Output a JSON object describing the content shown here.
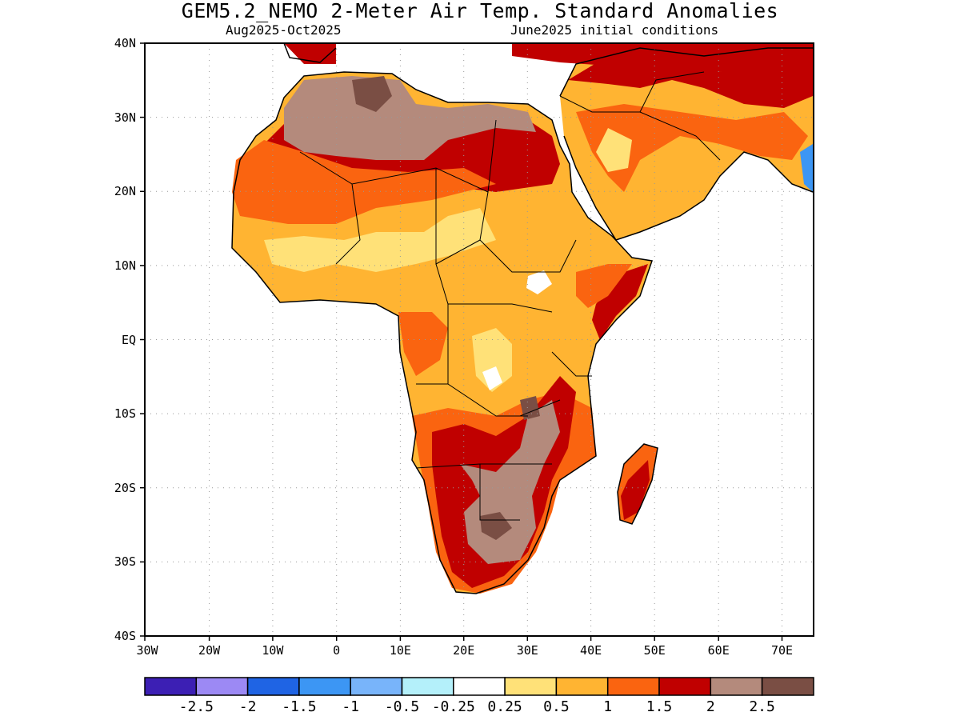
{
  "title": "GEM5.2_NEMO 2-Meter Air Temp. Standard Anomalies",
  "subtitle_left": "Aug2025-Oct2025",
  "subtitle_right": "June2025 initial conditions",
  "lat_labels": [
    "40N",
    "30N",
    "20N",
    "10N",
    "EQ",
    "10S",
    "20S",
    "30S",
    "40S"
  ],
  "lon_labels": [
    "30W",
    "20W",
    "10W",
    "0",
    "10E",
    "20E",
    "30E",
    "40E",
    "50E",
    "60E",
    "70E"
  ],
  "colorbar": {
    "colors": [
      "#3c1fb4",
      "#9c89f4",
      "#1f64e4",
      "#3c96f4",
      "#78b4fa",
      "#b4f0fa",
      "#ffffff",
      "#ffe178",
      "#ffb432",
      "#fa6410",
      "#c00000",
      "#b48a7c",
      "#7a4e44"
    ],
    "labels": [
      "-2.5",
      "-2",
      "-1.5",
      "-1",
      "-0.5",
      "-0.25",
      "0.25",
      "0.5",
      "1",
      "1.5",
      "2",
      "2.5"
    ]
  },
  "colors": {
    "anom_0_5": "#ffe178",
    "anom_1": "#ffb432",
    "anom_1_5": "#fa6410",
    "anom_2": "#c00000",
    "anom_2_5": "#b48a7c",
    "anom_3": "#7a4e44",
    "cool": "#b4f0fa"
  }
}
